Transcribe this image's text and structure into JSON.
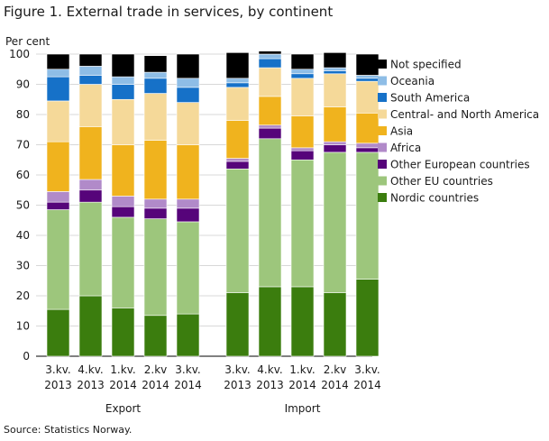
{
  "source": "Source: Statistics Norway.",
  "chart_data": {
    "type": "bar",
    "stacked": true,
    "title": "Figure 1. External trade in services, by continent",
    "ylabel": "Per cent",
    "ylim": [
      0,
      100
    ],
    "yticks": [
      0,
      10,
      20,
      30,
      40,
      50,
      60,
      70,
      80,
      90,
      100
    ],
    "grid": true,
    "legend_position": "right",
    "groups": [
      {
        "name": "Export",
        "categories": [
          [
            "3.kv.",
            "2013"
          ],
          [
            "4.kv.",
            "2013"
          ],
          [
            "1.kv.",
            "2014"
          ],
          [
            "2.kv",
            "2014"
          ],
          [
            "3.kv.",
            "2014"
          ]
        ]
      },
      {
        "name": "Import",
        "categories": [
          [
            "3.kv.",
            "2013"
          ],
          [
            "4.kv.",
            "2013"
          ],
          [
            "1.kv.",
            "2014"
          ],
          [
            "2.kv",
            "2014"
          ],
          [
            "3.kv.",
            "2014"
          ]
        ]
      }
    ],
    "series": [
      {
        "name": "Nordic countries",
        "color": "#3b7d0e",
        "values": [
          15.5,
          20,
          16,
          13.5,
          14,
          21,
          23,
          23,
          21,
          25.5
        ]
      },
      {
        "name": "Other EU countries",
        "color": "#9dc67c",
        "values": [
          33,
          31,
          30,
          32,
          30.5,
          41,
          49,
          42,
          46.5,
          42
        ]
      },
      {
        "name": "Other European countries",
        "color": "#56047a",
        "values": [
          2.5,
          4,
          3.5,
          3.5,
          4.5,
          2.5,
          3.5,
          3,
          2.5,
          1.5
        ]
      },
      {
        "name": "Africa",
        "color": "#b18ac9",
        "values": [
          3.5,
          3.5,
          3.5,
          3,
          3,
          1,
          1,
          1,
          1,
          1.5
        ]
      },
      {
        "name": "Asia",
        "color": "#f0b31e",
        "values": [
          16.5,
          17.5,
          17,
          19.5,
          18,
          12.5,
          9.5,
          10.5,
          11.5,
          10
        ]
      },
      {
        "name": "Central- and North America",
        "color": "#f5d999",
        "values": [
          13.5,
          14,
          15,
          15.5,
          14,
          11,
          9.5,
          12.5,
          11,
          10.5
        ]
      },
      {
        "name": "South America",
        "color": "#1671c8",
        "values": [
          8,
          3,
          5,
          5,
          5,
          1.5,
          3,
          1.5,
          1,
          1
        ]
      },
      {
        "name": "Oceania",
        "color": "#8ebde6",
        "values": [
          2.5,
          3,
          2.5,
          2,
          3,
          1.5,
          1.5,
          1.5,
          1,
          1
        ]
      },
      {
        "name": "Not specified",
        "color": "#000000",
        "values": [
          5,
          4,
          7.5,
          5.5,
          8,
          8.5,
          1,
          5,
          5,
          7
        ]
      }
    ]
  }
}
